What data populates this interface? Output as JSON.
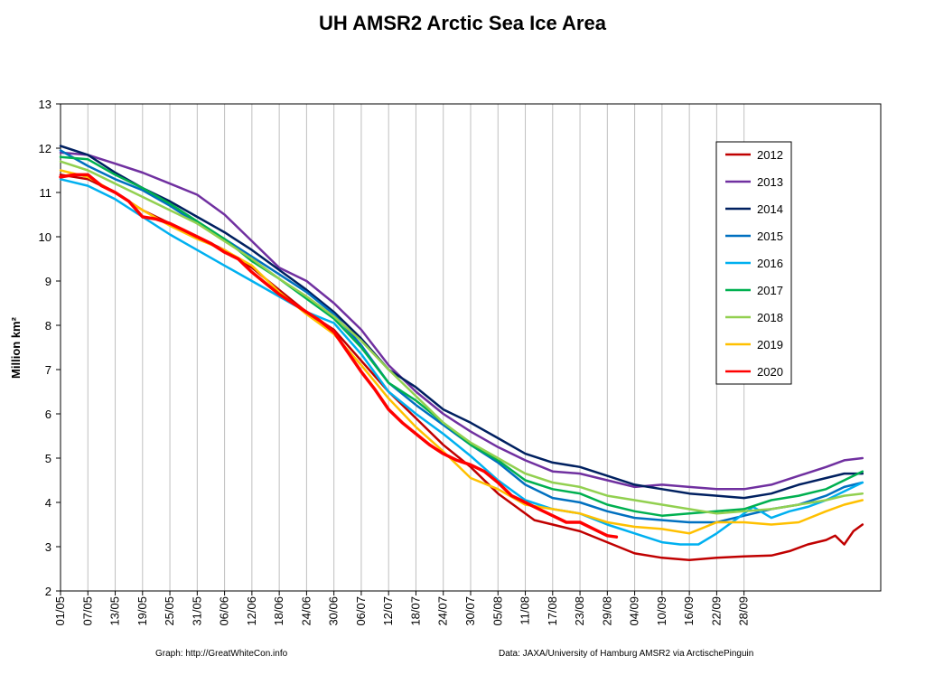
{
  "chart_data": {
    "type": "line",
    "title": "UH AMSR2 Arctic Sea Ice Area",
    "ylabel": "Million km²",
    "xlabel": "",
    "ylim": [
      2,
      13
    ],
    "yticks": [
      "2",
      "3",
      "4",
      "5",
      "6",
      "7",
      "8",
      "9",
      "10",
      "11",
      "12",
      "13"
    ],
    "xticks": [
      "01/05",
      "07/05",
      "13/05",
      "19/05",
      "25/05",
      "31/05",
      "06/06",
      "12/06",
      "18/06",
      "24/06",
      "30/06",
      "06/07",
      "12/07",
      "18/07",
      "24/07",
      "30/07",
      "05/08",
      "11/08",
      "17/08",
      "23/08",
      "29/08",
      "04/09",
      "10/09",
      "16/09",
      "22/09",
      "28/09"
    ],
    "grid": {
      "vertical": true,
      "horizontal": false
    },
    "legend_position": "top-right",
    "x_unit": "day since 1 May",
    "series": [
      {
        "name": "2012",
        "color": "#c00000",
        "width": 2,
        "points": [
          [
            0,
            11.4
          ],
          [
            6,
            11.3
          ],
          [
            12,
            11.0
          ],
          [
            18,
            10.6
          ],
          [
            24,
            10.3
          ],
          [
            30,
            10.0
          ],
          [
            36,
            9.7
          ],
          [
            42,
            9.3
          ],
          [
            48,
            8.8
          ],
          [
            54,
            8.3
          ],
          [
            60,
            7.9
          ],
          [
            66,
            7.2
          ],
          [
            72,
            6.5
          ],
          [
            78,
            5.9
          ],
          [
            84,
            5.3
          ],
          [
            90,
            4.8
          ],
          [
            96,
            4.2
          ],
          [
            100,
            3.9
          ],
          [
            104,
            3.6
          ],
          [
            108,
            3.5
          ],
          [
            114,
            3.35
          ],
          [
            120,
            3.1
          ],
          [
            126,
            2.85
          ],
          [
            132,
            2.75
          ],
          [
            138,
            2.7
          ],
          [
            144,
            2.75
          ],
          [
            150,
            2.78
          ],
          [
            156,
            2.8
          ],
          [
            160,
            2.9
          ],
          [
            164,
            3.05
          ],
          [
            168,
            3.15
          ],
          [
            170,
            3.25
          ],
          [
            172,
            3.05
          ],
          [
            174,
            3.35
          ],
          [
            176,
            3.5
          ]
        ]
      },
      {
        "name": "2013",
        "color": "#7030a0",
        "width": 2,
        "points": [
          [
            0,
            11.9
          ],
          [
            6,
            11.85
          ],
          [
            12,
            11.65
          ],
          [
            18,
            11.45
          ],
          [
            24,
            11.2
          ],
          [
            30,
            10.95
          ],
          [
            36,
            10.5
          ],
          [
            42,
            9.9
          ],
          [
            48,
            9.3
          ],
          [
            54,
            9.0
          ],
          [
            60,
            8.5
          ],
          [
            66,
            7.9
          ],
          [
            72,
            7.1
          ],
          [
            78,
            6.5
          ],
          [
            84,
            6.0
          ],
          [
            90,
            5.6
          ],
          [
            96,
            5.25
          ],
          [
            102,
            4.95
          ],
          [
            108,
            4.7
          ],
          [
            114,
            4.65
          ],
          [
            120,
            4.5
          ],
          [
            126,
            4.35
          ],
          [
            132,
            4.4
          ],
          [
            138,
            4.35
          ],
          [
            144,
            4.3
          ],
          [
            150,
            4.3
          ],
          [
            156,
            4.4
          ],
          [
            162,
            4.6
          ],
          [
            168,
            4.8
          ],
          [
            172,
            4.95
          ],
          [
            176,
            5.0
          ]
        ]
      },
      {
        "name": "2014",
        "color": "#002060",
        "width": 2,
        "points": [
          [
            0,
            12.05
          ],
          [
            6,
            11.85
          ],
          [
            12,
            11.45
          ],
          [
            18,
            11.1
          ],
          [
            24,
            10.8
          ],
          [
            30,
            10.45
          ],
          [
            36,
            10.1
          ],
          [
            42,
            9.7
          ],
          [
            48,
            9.25
          ],
          [
            54,
            8.8
          ],
          [
            60,
            8.3
          ],
          [
            66,
            7.7
          ],
          [
            72,
            7.0
          ],
          [
            78,
            6.6
          ],
          [
            84,
            6.1
          ],
          [
            90,
            5.8
          ],
          [
            96,
            5.45
          ],
          [
            102,
            5.1
          ],
          [
            108,
            4.9
          ],
          [
            114,
            4.8
          ],
          [
            120,
            4.6
          ],
          [
            126,
            4.4
          ],
          [
            132,
            4.3
          ],
          [
            138,
            4.2
          ],
          [
            144,
            4.15
          ],
          [
            150,
            4.1
          ],
          [
            156,
            4.2
          ],
          [
            162,
            4.4
          ],
          [
            168,
            4.55
          ],
          [
            172,
            4.65
          ],
          [
            176,
            4.65
          ]
        ]
      },
      {
        "name": "2015",
        "color": "#0070c0",
        "width": 2,
        "points": [
          [
            0,
            11.95
          ],
          [
            6,
            11.6
          ],
          [
            12,
            11.3
          ],
          [
            18,
            11.05
          ],
          [
            24,
            10.7
          ],
          [
            30,
            10.3
          ],
          [
            36,
            9.95
          ],
          [
            42,
            9.55
          ],
          [
            48,
            9.15
          ],
          [
            54,
            8.75
          ],
          [
            60,
            8.25
          ],
          [
            66,
            7.55
          ],
          [
            72,
            6.7
          ],
          [
            78,
            6.2
          ],
          [
            84,
            5.75
          ],
          [
            90,
            5.3
          ],
          [
            96,
            4.9
          ],
          [
            102,
            4.4
          ],
          [
            108,
            4.1
          ],
          [
            114,
            4.0
          ],
          [
            120,
            3.8
          ],
          [
            126,
            3.65
          ],
          [
            132,
            3.6
          ],
          [
            138,
            3.55
          ],
          [
            144,
            3.55
          ],
          [
            150,
            3.7
          ],
          [
            156,
            3.85
          ],
          [
            162,
            3.95
          ],
          [
            168,
            4.15
          ],
          [
            172,
            4.35
          ],
          [
            176,
            4.45
          ]
        ]
      },
      {
        "name": "2016",
        "color": "#00b0f0",
        "width": 2,
        "points": [
          [
            0,
            11.3
          ],
          [
            6,
            11.15
          ],
          [
            12,
            10.85
          ],
          [
            18,
            10.45
          ],
          [
            24,
            10.05
          ],
          [
            30,
            9.7
          ],
          [
            36,
            9.35
          ],
          [
            42,
            9.0
          ],
          [
            48,
            8.65
          ],
          [
            54,
            8.3
          ],
          [
            60,
            8.05
          ],
          [
            66,
            7.35
          ],
          [
            72,
            6.5
          ],
          [
            78,
            6.0
          ],
          [
            84,
            5.55
          ],
          [
            90,
            5.05
          ],
          [
            96,
            4.5
          ],
          [
            102,
            4.05
          ],
          [
            108,
            3.85
          ],
          [
            114,
            3.75
          ],
          [
            120,
            3.5
          ],
          [
            126,
            3.3
          ],
          [
            132,
            3.1
          ],
          [
            136,
            3.05
          ],
          [
            140,
            3.05
          ],
          [
            144,
            3.3
          ],
          [
            148,
            3.6
          ],
          [
            152,
            3.9
          ],
          [
            156,
            3.65
          ],
          [
            160,
            3.8
          ],
          [
            164,
            3.9
          ],
          [
            168,
            4.05
          ],
          [
            172,
            4.25
          ],
          [
            176,
            4.45
          ]
        ]
      },
      {
        "name": "2017",
        "color": "#00b050",
        "width": 2,
        "points": [
          [
            0,
            11.8
          ],
          [
            6,
            11.75
          ],
          [
            12,
            11.4
          ],
          [
            18,
            11.1
          ],
          [
            24,
            10.75
          ],
          [
            30,
            10.35
          ],
          [
            36,
            9.95
          ],
          [
            42,
            9.45
          ],
          [
            48,
            9.05
          ],
          [
            54,
            8.6
          ],
          [
            60,
            8.15
          ],
          [
            66,
            7.5
          ],
          [
            72,
            6.7
          ],
          [
            78,
            6.3
          ],
          [
            84,
            5.8
          ],
          [
            90,
            5.3
          ],
          [
            96,
            4.95
          ],
          [
            102,
            4.5
          ],
          [
            108,
            4.3
          ],
          [
            114,
            4.2
          ],
          [
            120,
            3.95
          ],
          [
            126,
            3.8
          ],
          [
            132,
            3.7
          ],
          [
            138,
            3.75
          ],
          [
            144,
            3.8
          ],
          [
            150,
            3.85
          ],
          [
            156,
            4.05
          ],
          [
            162,
            4.15
          ],
          [
            168,
            4.3
          ],
          [
            172,
            4.5
          ],
          [
            176,
            4.7
          ]
        ]
      },
      {
        "name": "2018",
        "color": "#92d050",
        "width": 2,
        "points": [
          [
            0,
            11.7
          ],
          [
            6,
            11.5
          ],
          [
            12,
            11.2
          ],
          [
            18,
            10.9
          ],
          [
            24,
            10.6
          ],
          [
            30,
            10.3
          ],
          [
            36,
            9.9
          ],
          [
            42,
            9.5
          ],
          [
            48,
            9.05
          ],
          [
            54,
            8.65
          ],
          [
            60,
            8.2
          ],
          [
            66,
            7.65
          ],
          [
            72,
            7.0
          ],
          [
            78,
            6.4
          ],
          [
            84,
            5.8
          ],
          [
            90,
            5.35
          ],
          [
            96,
            5.0
          ],
          [
            102,
            4.65
          ],
          [
            108,
            4.45
          ],
          [
            114,
            4.35
          ],
          [
            120,
            4.15
          ],
          [
            126,
            4.05
          ],
          [
            132,
            3.95
          ],
          [
            138,
            3.85
          ],
          [
            144,
            3.75
          ],
          [
            150,
            3.8
          ],
          [
            156,
            3.85
          ],
          [
            162,
            3.95
          ],
          [
            168,
            4.05
          ],
          [
            172,
            4.15
          ],
          [
            176,
            4.2
          ]
        ]
      },
      {
        "name": "2019",
        "color": "#ffc000",
        "width": 2,
        "points": [
          [
            0,
            11.5
          ],
          [
            6,
            11.35
          ],
          [
            12,
            11.0
          ],
          [
            18,
            10.6
          ],
          [
            24,
            10.25
          ],
          [
            30,
            9.95
          ],
          [
            36,
            9.7
          ],
          [
            42,
            9.35
          ],
          [
            48,
            8.75
          ],
          [
            54,
            8.25
          ],
          [
            60,
            7.8
          ],
          [
            66,
            7.1
          ],
          [
            72,
            6.35
          ],
          [
            78,
            5.7
          ],
          [
            84,
            5.15
          ],
          [
            90,
            4.55
          ],
          [
            96,
            4.3
          ],
          [
            102,
            3.95
          ],
          [
            108,
            3.85
          ],
          [
            114,
            3.75
          ],
          [
            120,
            3.55
          ],
          [
            126,
            3.45
          ],
          [
            132,
            3.4
          ],
          [
            138,
            3.3
          ],
          [
            144,
            3.55
          ],
          [
            150,
            3.55
          ],
          [
            156,
            3.5
          ],
          [
            162,
            3.55
          ],
          [
            168,
            3.8
          ],
          [
            172,
            3.95
          ],
          [
            176,
            4.05
          ]
        ]
      },
      {
        "name": "2020",
        "color": "#ff0000",
        "width": 3,
        "points": [
          [
            0,
            11.35
          ],
          [
            3,
            11.4
          ],
          [
            6,
            11.4
          ],
          [
            9,
            11.15
          ],
          [
            12,
            11.0
          ],
          [
            15,
            10.8
          ],
          [
            18,
            10.45
          ],
          [
            21,
            10.4
          ],
          [
            24,
            10.3
          ],
          [
            27,
            10.15
          ],
          [
            30,
            10.0
          ],
          [
            33,
            9.85
          ],
          [
            36,
            9.65
          ],
          [
            39,
            9.5
          ],
          [
            42,
            9.2
          ],
          [
            45,
            8.95
          ],
          [
            48,
            8.7
          ],
          [
            51,
            8.5
          ],
          [
            54,
            8.3
          ],
          [
            57,
            8.1
          ],
          [
            60,
            7.85
          ],
          [
            63,
            7.4
          ],
          [
            66,
            6.95
          ],
          [
            69,
            6.55
          ],
          [
            72,
            6.1
          ],
          [
            75,
            5.8
          ],
          [
            78,
            5.55
          ],
          [
            81,
            5.3
          ],
          [
            84,
            5.1
          ],
          [
            87,
            4.95
          ],
          [
            90,
            4.85
          ],
          [
            93,
            4.7
          ],
          [
            96,
            4.45
          ],
          [
            99,
            4.15
          ],
          [
            102,
            4.0
          ],
          [
            105,
            3.85
          ],
          [
            108,
            3.7
          ],
          [
            111,
            3.55
          ],
          [
            114,
            3.55
          ],
          [
            117,
            3.4
          ],
          [
            120,
            3.25
          ],
          [
            122,
            3.22
          ]
        ]
      }
    ],
    "footer_left": "Graph: http://GreatWhiteCon.info",
    "footer_right": "Data: JAXA/University of Hamburg AMSR2 via  ArctischePinguin"
  }
}
